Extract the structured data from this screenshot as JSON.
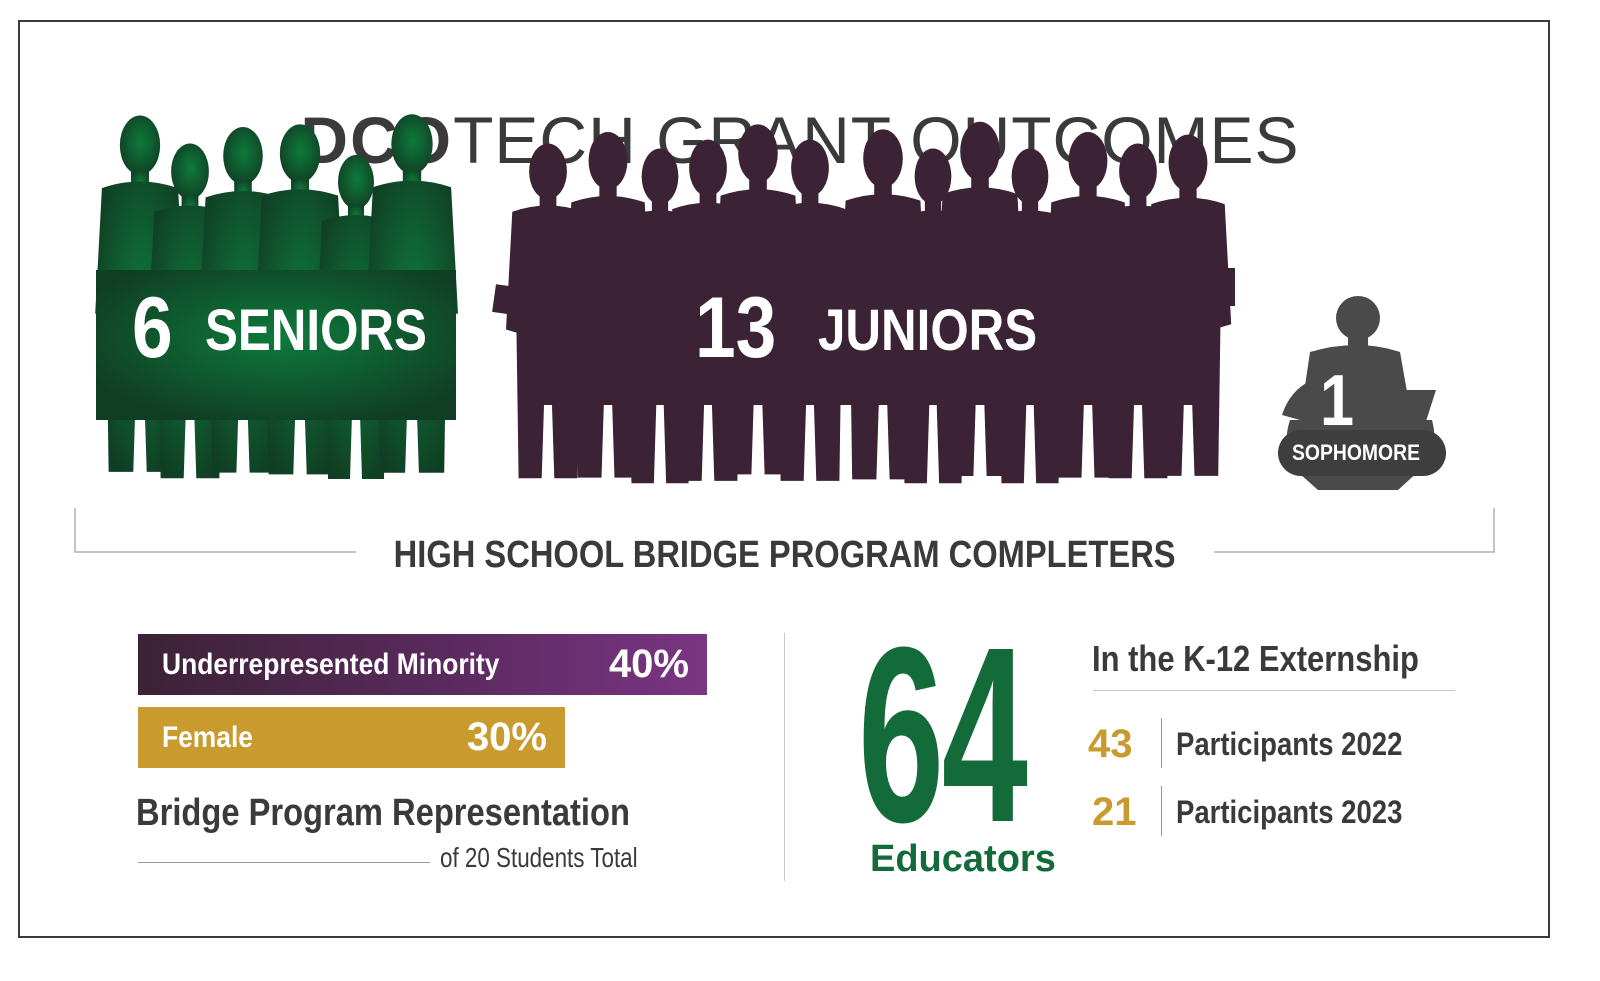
{
  "title": {
    "bold": "DCO",
    "rest": "TECH GRANT OUTCOMES"
  },
  "groups": {
    "seniors": {
      "count": "6",
      "label": "SENIORS",
      "color": "#0f5a2e"
    },
    "juniors": {
      "count": "13",
      "label": "JUNIORS",
      "color": "#3b2234"
    },
    "sophomore": {
      "count": "1",
      "label": "SOPHOMORE",
      "color": "#4a4a4a"
    }
  },
  "bridge_caption": "HIGH SCHOOL BRIDGE PROGRAM COMPLETERS",
  "representation": {
    "bars": [
      {
        "label": "Underrepresented Minority",
        "value": "40%",
        "color": "#5a2a5f"
      },
      {
        "label": "Female",
        "value": "30%",
        "color": "#c99a2e"
      }
    ],
    "title": "Bridge Program Representation",
    "subtitle": "of 20 Students Total"
  },
  "educators": {
    "count": "64",
    "label": "Educators",
    "heading": "In the K-12 Externship",
    "rows": [
      {
        "count": "43",
        "label": "Participants 2022"
      },
      {
        "count": "21",
        "label": "Participants 2023"
      }
    ],
    "color": "#146b3a"
  }
}
